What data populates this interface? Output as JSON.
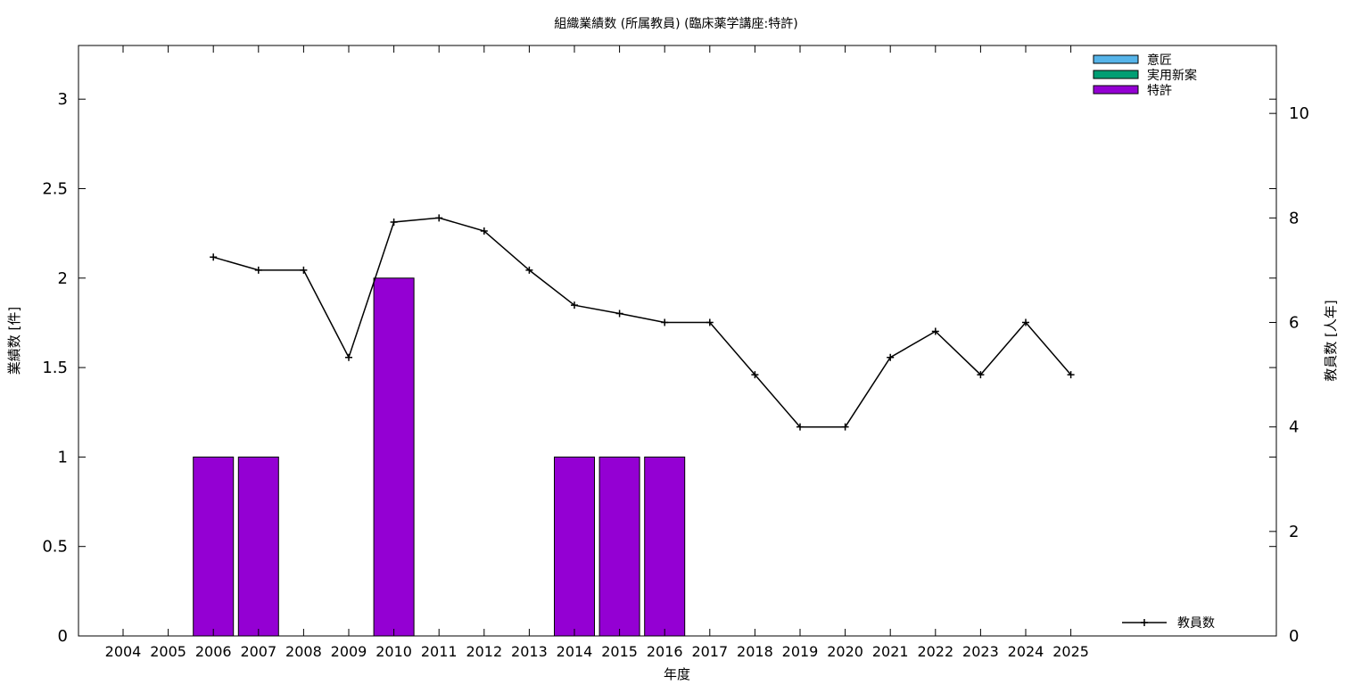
{
  "chart_data": {
    "type": "bar",
    "title": "組織業績数 (所属教員) (臨床薬学講座:特許)",
    "xlabel": "年度",
    "ylabel": "業績数 [件]",
    "y2label": "教員数 [人年]",
    "categories": [
      "2004",
      "2005",
      "2006",
      "2007",
      "2008",
      "2009",
      "2010",
      "2011",
      "2012",
      "2013",
      "2014",
      "2015",
      "2016",
      "2017",
      "2018",
      "2019",
      "2020",
      "2021",
      "2022",
      "2023",
      "2024",
      "2025"
    ],
    "ylim": [
      0,
      3.3
    ],
    "y2lim": [
      0,
      11.3
    ],
    "yticks": [
      "0",
      "0.5",
      "1",
      "1.5",
      "2",
      "2.5",
      "3"
    ],
    "y2ticks": [
      "0",
      "2",
      "4",
      "6",
      "8",
      "10"
    ],
    "series": [
      {
        "name": "意匠",
        "kind": "bar",
        "color": "#56b4e9",
        "values": [
          0,
          0,
          0,
          0,
          0,
          0,
          0,
          0,
          0,
          0,
          0,
          0,
          0,
          0,
          0,
          0,
          0,
          0,
          0,
          0,
          0,
          0
        ]
      },
      {
        "name": "実用新案",
        "kind": "bar",
        "color": "#009e73",
        "values": [
          0,
          0,
          0,
          0,
          0,
          0,
          0,
          0,
          0,
          0,
          0,
          0,
          0,
          0,
          0,
          0,
          0,
          0,
          0,
          0,
          0,
          0
        ]
      },
      {
        "name": "特許",
        "kind": "bar",
        "color": "#9400d3",
        "values": [
          0,
          0,
          1,
          1,
          0,
          0,
          2,
          0,
          0,
          0,
          1,
          1,
          1,
          0,
          0,
          0,
          0,
          0,
          0,
          0,
          0,
          0
        ]
      },
      {
        "name": "教員数",
        "kind": "line",
        "axis": "y2",
        "color": "#000000",
        "values": [
          null,
          null,
          7.25,
          7.0,
          7.0,
          5.33,
          7.92,
          8.0,
          7.75,
          7.0,
          6.33,
          6.17,
          6.0,
          6.0,
          5.0,
          4.0,
          4.0,
          5.33,
          5.83,
          5.0,
          6.0,
          5.0
        ]
      }
    ],
    "grid": false,
    "legend_position": "top-right"
  }
}
